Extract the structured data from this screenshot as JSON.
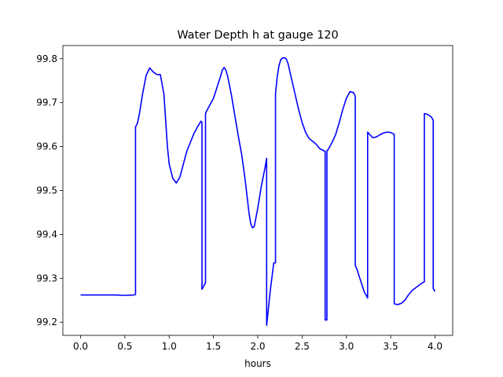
{
  "chart_data": {
    "type": "line",
    "title": "Water Depth h at gauge 120",
    "xlabel": "hours",
    "ylabel": "",
    "xlim": [
      -0.2,
      4.2
    ],
    "ylim": [
      99.17,
      99.83
    ],
    "xticks": [
      0.0,
      0.5,
      1.0,
      1.5,
      2.0,
      2.5,
      3.0,
      3.5,
      4.0
    ],
    "xtick_labels": [
      "0.0",
      "0.5",
      "1.0",
      "1.5",
      "2.0",
      "2.5",
      "3.0",
      "3.5",
      "4.0"
    ],
    "yticks": [
      99.2,
      99.3,
      99.4,
      99.5,
      99.6,
      99.7,
      99.8
    ],
    "ytick_labels": [
      "99.2",
      "99.3",
      "99.4",
      "99.5",
      "99.6",
      "99.7",
      "99.8"
    ],
    "grid": false,
    "legend": "none",
    "series": [
      {
        "color": "#0000ff",
        "x": [
          0.0,
          0.2,
          0.4,
          0.5,
          0.6,
          0.62,
          0.62,
          0.64,
          0.66,
          0.7,
          0.74,
          0.78,
          0.82,
          0.86,
          0.9,
          0.94,
          0.96,
          0.98,
          1.0,
          1.04,
          1.08,
          1.12,
          1.16,
          1.2,
          1.24,
          1.28,
          1.32,
          1.36,
          1.37,
          1.37,
          1.41,
          1.41,
          1.42,
          1.46,
          1.5,
          1.54,
          1.58,
          1.6,
          1.62,
          1.64,
          1.66,
          1.7,
          1.74,
          1.78,
          1.82,
          1.86,
          1.9,
          1.92,
          1.94,
          1.96,
          2.0,
          2.04,
          2.08,
          2.1,
          2.1,
          2.14,
          2.18,
          2.2,
          2.2,
          2.22,
          2.24,
          2.26,
          2.28,
          2.3,
          2.32,
          2.34,
          2.38,
          2.42,
          2.46,
          2.5,
          2.54,
          2.58,
          2.62,
          2.66,
          2.7,
          2.74,
          2.76,
          2.76,
          2.78,
          2.78,
          2.8,
          2.84,
          2.88,
          2.92,
          2.96,
          3.0,
          3.04,
          3.08,
          3.1,
          3.1,
          3.12,
          3.16,
          3.2,
          3.24,
          3.24,
          3.26,
          3.3,
          3.34,
          3.38,
          3.42,
          3.46,
          3.5,
          3.54,
          3.54,
          3.58,
          3.62,
          3.66,
          3.7,
          3.74,
          3.78,
          3.82,
          3.86,
          3.88,
          3.88,
          3.92,
          3.96,
          3.98,
          3.98,
          4.0
        ],
        "y": [
          99.262,
          99.262,
          99.262,
          99.261,
          99.262,
          99.263,
          99.645,
          99.652,
          99.67,
          99.72,
          99.762,
          99.779,
          99.77,
          99.764,
          99.764,
          99.72,
          99.66,
          99.6,
          99.56,
          99.528,
          99.517,
          99.53,
          99.56,
          99.59,
          99.61,
          99.63,
          99.645,
          99.658,
          99.655,
          99.275,
          99.29,
          99.675,
          99.68,
          99.695,
          99.71,
          99.735,
          99.76,
          99.774,
          99.78,
          99.774,
          99.76,
          99.72,
          99.672,
          99.624,
          99.58,
          99.52,
          99.45,
          99.425,
          99.415,
          99.418,
          99.46,
          99.51,
          99.55,
          99.573,
          99.193,
          99.27,
          99.335,
          99.335,
          99.72,
          99.76,
          99.785,
          99.798,
          99.802,
          99.802,
          99.8,
          99.79,
          99.755,
          99.72,
          99.685,
          99.655,
          99.632,
          99.618,
          99.612,
          99.605,
          99.595,
          99.591,
          99.589,
          99.205,
          99.205,
          99.59,
          99.595,
          99.61,
          99.628,
          99.655,
          99.685,
          99.71,
          99.725,
          99.723,
          99.715,
          99.33,
          99.32,
          99.295,
          99.27,
          99.255,
          99.633,
          99.628,
          99.62,
          99.622,
          99.627,
          99.631,
          99.633,
          99.632,
          99.628,
          99.242,
          99.24,
          99.243,
          99.25,
          99.262,
          99.272,
          99.278,
          99.284,
          99.29,
          99.292,
          99.675,
          99.673,
          99.667,
          99.66,
          99.277,
          99.27
        ]
      }
    ]
  }
}
